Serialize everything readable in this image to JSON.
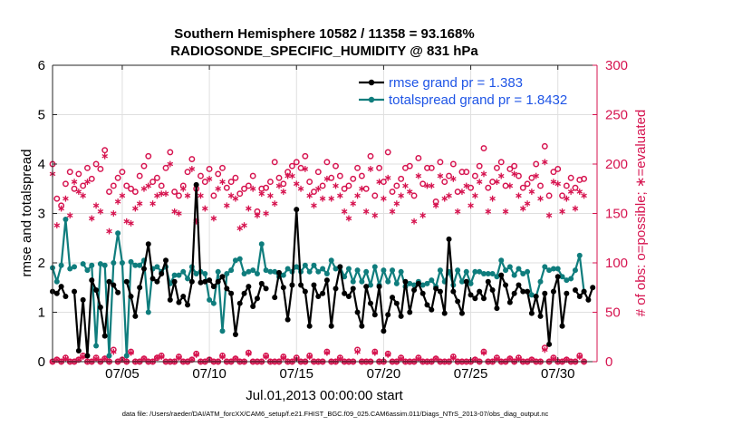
{
  "chart_data": {
    "type": "line",
    "title": [
      "Southern Hemisphere 10582 / 11358 = 93.168%",
      "RADIOSONDE_SPECIFIC_HUMIDITY @ 831 hPa"
    ],
    "xlabel": "Jul.01,2013 00:00:00 start",
    "ylabel": "rmse and totalspread",
    "y2label": "# of obs: o=possible; ∗=evaluated",
    "footnote": "data file: /Users/raeder/DAI/ATM_forcXX/CAM6_setup/f.e21.FHIST_BGC.f09_025.CAM6assim.011/Diags_NTrS_2013-07/obs_diag_output.nc",
    "xlim": [
      1.0,
      32.25
    ],
    "ylim": [
      0,
      6
    ],
    "y2lim": [
      0,
      300
    ],
    "xticks": [
      {
        "value": 5,
        "label": "07/05"
      },
      {
        "value": 10,
        "label": "07/10"
      },
      {
        "value": 15,
        "label": "07/15"
      },
      {
        "value": 20,
        "label": "07/20"
      },
      {
        "value": 25,
        "label": "07/25"
      },
      {
        "value": 30,
        "label": "07/30"
      }
    ],
    "yticks": [
      "0",
      "1",
      "2",
      "3",
      "4",
      "5",
      "6"
    ],
    "y2ticks": [
      "0",
      "50",
      "100",
      "150",
      "200",
      "250",
      "300"
    ],
    "legend": [
      {
        "label": "rmse grand pr = 1.383",
        "color": "#000000"
      },
      {
        "label": "totalspread grand pr = 1.8432",
        "color": "#0f7d7d"
      }
    ],
    "colors": {
      "rmse": "#000000",
      "totalspread": "#0f7d7d",
      "obs": "#d6134f",
      "legend_text": "#1f55e6"
    },
    "x_start": 1.0,
    "x_step": 0.25,
    "series": [
      {
        "name": "rmse",
        "values": [
          1.42,
          1.38,
          1.52,
          1.32,
          null,
          1.42,
          0.22,
          1.25,
          0.12,
          1.65,
          1.45,
          1.1,
          0.52,
          1.62,
          1.55,
          1.4,
          null,
          1.62,
          1.32,
          0.92,
          1.5,
          1.88,
          2.38,
          1.68,
          1.62,
          1.78,
          2.05,
          1.25,
          1.62,
          1.2,
          1.32,
          1.15,
          1.62,
          3.58,
          1.6,
          1.62,
          1.65,
          1.52,
          1.62,
          1.72,
          1.48,
          1.38,
          0.55,
          1.18,
          1.38,
          1.52,
          1.12,
          1.28,
          1.58,
          1.48,
          null,
          1.3,
          1.8,
          1.5,
          0.85,
          1.55,
          3.08,
          1.55,
          1.42,
          0.72,
          1.55,
          1.32,
          1.38,
          1.65,
          0.72,
          1.48,
          1.92,
          1.38,
          1.32,
          1.48,
          1.0,
          0.72,
          1.52,
          1.18,
          0.95,
          1.52,
          0.62,
          0.95,
          1.3,
          1.18,
          0.92,
          1.62,
          1.0,
          1.45,
          1.58,
          1.38,
          1.15,
          1.05,
          1.48,
          1.42,
          0.98,
          2.48,
          1.42,
          1.22,
          0.98,
          1.62,
          1.35,
          1.28,
          1.42,
          1.28,
          1.62,
          1.45,
          1.08,
          1.75,
          1.55,
          1.2,
          1.38,
          1.55,
          1.42,
          1.42,
          0.98,
          1.32,
          0.92,
          1.38,
          0.35,
          1.42,
          1.72,
          0.72,
          1.38,
          null,
          1.45,
          1.32,
          1.42,
          1.25,
          1.5
        ]
      },
      {
        "name": "totalspread",
        "values": [
          1.9,
          1.62,
          1.95,
          2.88,
          1.88,
          1.92,
          null,
          1.98,
          1.85,
          1.95,
          0.32,
          1.98,
          1.95,
          0.12,
          2.0,
          2.6,
          2.0,
          0.12,
          2.02,
          1.95,
          1.95,
          2.05,
          1.0,
          1.88,
          1.92,
          1.82,
          1.92,
          1.58,
          1.75,
          1.75,
          1.82,
          1.68,
          1.92,
          1.78,
          1.82,
          1.78,
          1.25,
          1.18,
          1.82,
          0.62,
          1.78,
          1.85,
          2.05,
          2.08,
          1.78,
          1.82,
          1.85,
          1.78,
          2.38,
          1.85,
          1.82,
          1.82,
          1.72,
          1.75,
          1.88,
          1.82,
          1.92,
          1.82,
          1.95,
          1.82,
          1.95,
          1.82,
          1.88,
          1.78,
          2.05,
          1.88,
          1.92,
          1.72,
          1.88,
          1.62,
          1.85,
          1.62,
          1.82,
          1.55,
          1.92,
          1.55,
          1.85,
          1.62,
          1.85,
          1.58,
          1.82,
          1.52,
          1.58,
          1.55,
          1.62,
          1.55,
          1.58,
          1.65,
          1.52,
          1.85,
          1.62,
          1.82,
          1.55,
          1.85,
          1.62,
          1.82,
          1.58,
          1.82,
          1.82,
          1.78,
          1.78,
          1.78,
          1.72,
          2.05,
          1.85,
          1.92,
          1.75,
          1.88,
          1.78,
          1.82,
          1.35,
          1.32,
          1.62,
          1.92,
          1.85,
          1.88,
          1.88,
          1.72,
          1.65,
          1.68,
          1.85,
          2.15,
          1.42
        ]
      },
      {
        "name": "obs_possible",
        "axis": "y2",
        "values": [
          200,
          165,
          158,
          180,
          192,
          175,
          190,
          178,
          196,
          185,
          200,
          195,
          214,
          172,
          178,
          186,
          192,
          178,
          175,
          172,
          188,
          198,
          208,
          182,
          186,
          178,
          196,
          212,
          172,
          168,
          178,
          192,
          205,
          175,
          188,
          182,
          195,
          168,
          190,
          196,
          176,
          182,
          186,
          170,
          175,
          178,
          188,
          152,
          175,
          176,
          182,
          202,
          186,
          180,
          192,
          198,
          202,
          196,
          208,
          182,
          172,
          192,
          178,
          202,
          186,
          198,
          188,
          175,
          178,
          185,
          196,
          188,
          175,
          208,
          168,
          196,
          182,
          212,
          172,
          178,
          185,
          196,
          198,
          168,
          206,
          180,
          196,
          196,
          162,
          202,
          182,
          188,
          200,
          172,
          192,
          192,
          176,
          188,
          198,
          216,
          176,
          182,
          196,
          202,
          178,
          195,
          198,
          188,
          176,
          180,
          186,
          200,
          178,
          218,
          168,
          192,
          195,
          168,
          178,
          186,
          176,
          184,
          185
        ]
      },
      {
        "name": "obs_evaluated",
        "axis": "y2",
        "values": [
          190,
          138,
          155,
          165,
          148,
          182,
          172,
          168,
          182,
          145,
          158,
          152,
          208,
          132,
          150,
          162,
          168,
          142,
          140,
          155,
          160,
          175,
          178,
          160,
          168,
          170,
          170,
          200,
          152,
          150,
          175,
          168,
          195,
          142,
          168,
          155,
          185,
          145,
          175,
          182,
          158,
          168,
          165,
          135,
          138,
          155,
          175,
          148,
          170,
          150,
          168,
          160,
          178,
          172,
          188,
          188,
          180,
          175,
          195,
          168,
          158,
          175,
          165,
          185,
          165,
          178,
          168,
          152,
          145,
          160,
          168,
          175,
          152,
          195,
          148,
          182,
          165,
          186,
          152,
          160,
          168,
          178,
          172,
          142,
          188,
          148,
          178,
          178,
          158,
          188,
          165,
          168,
          185,
          152,
          172,
          178,
          158,
          168,
          182,
          190,
          152,
          165,
          182,
          188,
          152,
          178,
          190,
          168,
          155,
          160,
          172,
          188,
          165,
          202,
          148,
          182,
          180,
          152,
          165,
          172,
          155,
          172,
          168
        ]
      },
      {
        "name": "obs_possible_low",
        "axis": "y2",
        "values": [
          0,
          2,
          0,
          4,
          0,
          0,
          2,
          6,
          0,
          0,
          4,
          0,
          3,
          0,
          12,
          0,
          2,
          0,
          10,
          0,
          0,
          3,
          0,
          0,
          4,
          6,
          0,
          0,
          0,
          5,
          0,
          0,
          2,
          8,
          0,
          0,
          2,
          0,
          0,
          6,
          0,
          0,
          3,
          0,
          0,
          9,
          0,
          0,
          0,
          6,
          0,
          0,
          0,
          5,
          0,
          0,
          4,
          0,
          0,
          6,
          0,
          0,
          0,
          10,
          0,
          0,
          4,
          0,
          0,
          0,
          12,
          0,
          0,
          0,
          10,
          0,
          0,
          8,
          0,
          0,
          4,
          0,
          0,
          0,
          4,
          0,
          0,
          0,
          3,
          0,
          0,
          0,
          5,
          0,
          0,
          0,
          0,
          2,
          0,
          10,
          0,
          0,
          4,
          0,
          0,
          3,
          0,
          4,
          0,
          0,
          2,
          0,
          0,
          14,
          0,
          4,
          0,
          0,
          2,
          0,
          0,
          6,
          0
        ]
      },
      {
        "name": "obs_evaluated_low",
        "axis": "y2",
        "values": [
          0,
          2,
          0,
          3,
          0,
          0,
          2,
          5,
          0,
          0,
          3,
          0,
          3,
          0,
          10,
          0,
          2,
          0,
          9,
          0,
          0,
          3,
          0,
          0,
          4,
          5,
          0,
          0,
          0,
          4,
          0,
          0,
          2,
          7,
          0,
          0,
          2,
          0,
          0,
          5,
          0,
          0,
          3,
          0,
          0,
          8,
          0,
          0,
          0,
          5,
          0,
          0,
          0,
          4,
          0,
          0,
          3,
          0,
          0,
          5,
          0,
          0,
          0,
          9,
          0,
          0,
          3,
          0,
          0,
          0,
          10,
          0,
          0,
          0,
          9,
          0,
          0,
          7,
          0,
          0,
          3,
          0,
          0,
          0,
          3,
          0,
          0,
          0,
          3,
          0,
          0,
          0,
          4,
          0,
          0,
          0,
          0,
          2,
          0,
          9,
          0,
          0,
          3,
          0,
          0,
          3,
          0,
          3,
          0,
          0,
          2,
          0,
          0,
          12,
          0,
          3,
          0,
          0,
          2,
          0,
          0,
          5,
          0
        ]
      }
    ]
  }
}
